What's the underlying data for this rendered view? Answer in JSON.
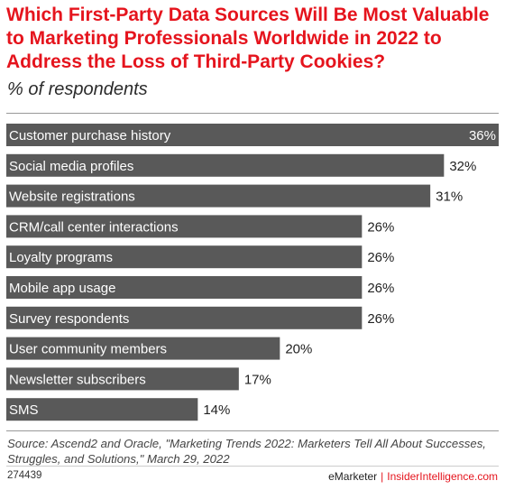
{
  "title": "Which First-Party Data Sources Will Be Most Valuable to Marketing Professionals Worldwide in 2022 to Address the Loss of Third-Party Cookies?",
  "subtitle": "% of respondents",
  "source": "Source: Ascend2 and Oracle, \"Marketing Trends 2022: Marketers Tell All About Successes, Struggles, and Solutions,\" March 29, 2022",
  "footer": {
    "id": "274439",
    "brand": "eMarketer",
    "separator": "|",
    "site": "InsiderIntelligence.com"
  },
  "colors": {
    "title": "#e5141d",
    "bar": "#595959",
    "bar_label": "#ffffff",
    "value": "#222222"
  },
  "chart_data": {
    "type": "bar",
    "orientation": "horizontal",
    "categories": [
      "Customer purchase history",
      "Social media profiles",
      "Website registrations",
      "CRM/call center interactions",
      "Loyalty programs",
      "Mobile app usage",
      "Survey respondents",
      "User community members",
      "Newsletter subscribers",
      "SMS"
    ],
    "values": [
      36,
      32,
      31,
      26,
      26,
      26,
      26,
      20,
      17,
      14
    ],
    "value_labels": [
      "36%",
      "32%",
      "31%",
      "26%",
      "26%",
      "26%",
      "26%",
      "20%",
      "17%",
      "14%"
    ],
    "xlim": [
      0,
      36
    ],
    "grid": false,
    "legend": "none"
  }
}
